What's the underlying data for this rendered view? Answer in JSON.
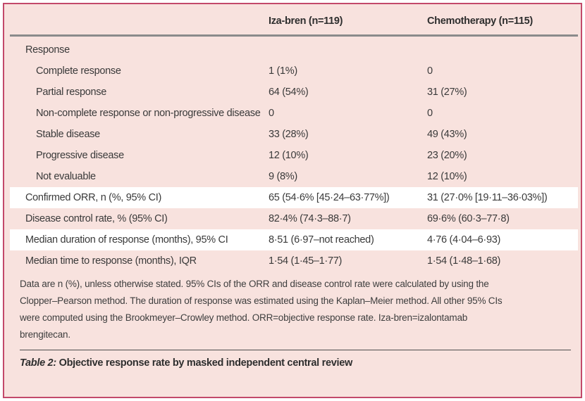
{
  "colors": {
    "border_crimson": "#C3496B",
    "background_pink": "#F8E2DE",
    "highlight_row_white": "#FFFFFF",
    "header_rule_gray": "#8B8B8B",
    "text": "#3A3A3A"
  },
  "table": {
    "column_headers": {
      "iza_bren": "Iza-bren (n=119)",
      "chemotherapy": "Chemotherapy (n=115)"
    },
    "rows": [
      {
        "label": "Response",
        "iza": "",
        "chemo": "",
        "indent": false,
        "section": true,
        "highlight": false
      },
      {
        "label": "Complete response",
        "iza": "1 (1%)",
        "chemo": "0",
        "indent": true,
        "section": false,
        "highlight": false
      },
      {
        "label": "Partial response",
        "iza": "64 (54%)",
        "chemo": "31 (27%)",
        "indent": true,
        "section": false,
        "highlight": false
      },
      {
        "label": "Non-complete response or non-progressive disease",
        "iza": "0",
        "chemo": "0",
        "indent": true,
        "section": false,
        "highlight": false
      },
      {
        "label": "Stable disease",
        "iza": "33 (28%)",
        "chemo": "49 (43%)",
        "indent": true,
        "section": false,
        "highlight": false
      },
      {
        "label": "Progressive disease",
        "iza": "12 (10%)",
        "chemo": "23 (20%)",
        "indent": true,
        "section": false,
        "highlight": false
      },
      {
        "label": "Not evaluable",
        "iza": "9 (8%)",
        "chemo": "12 (10%)",
        "indent": true,
        "section": false,
        "highlight": false
      },
      {
        "label": "Confirmed ORR, n (%, 95% CI)",
        "iza": "65 (54·6% [45·24–63·77%])",
        "chemo": "31 (27·0% [19·11–36·03%])",
        "indent": false,
        "section": false,
        "highlight": true
      },
      {
        "label": "Disease control rate, % (95% CI)",
        "iza": "82·4% (74·3–88·7)",
        "chemo": "69·6% (60·3–77·8)",
        "indent": false,
        "section": false,
        "highlight": false
      },
      {
        "label": "Median duration of response (months), 95% CI",
        "iza": "8·51 (6·97–not reached)",
        "chemo": "4·76 (4·04–6·93)",
        "indent": false,
        "section": false,
        "highlight": true
      },
      {
        "label": "Median time to response (months), IQR",
        "iza": "1·54 (1·45–1·77)",
        "chemo": "1·54 (1·48–1·68)",
        "indent": false,
        "section": false,
        "highlight": false
      }
    ]
  },
  "footnote_lines": [
    "Data are n (%), unless otherwise stated. 95% CIs of the ORR and disease control rate were calculated by using the",
    "Clopper–Pearson method. The duration of response was estimated using the Kaplan–Meier method. All other 95% CIs",
    "were computed using the Brookmeyer–Crowley method. ORR=objective response rate. Iza-bren=izalontamab",
    "brengitecan."
  ],
  "caption": {
    "label": "Table 2:",
    "text": " Objective response rate by masked independent central review"
  }
}
